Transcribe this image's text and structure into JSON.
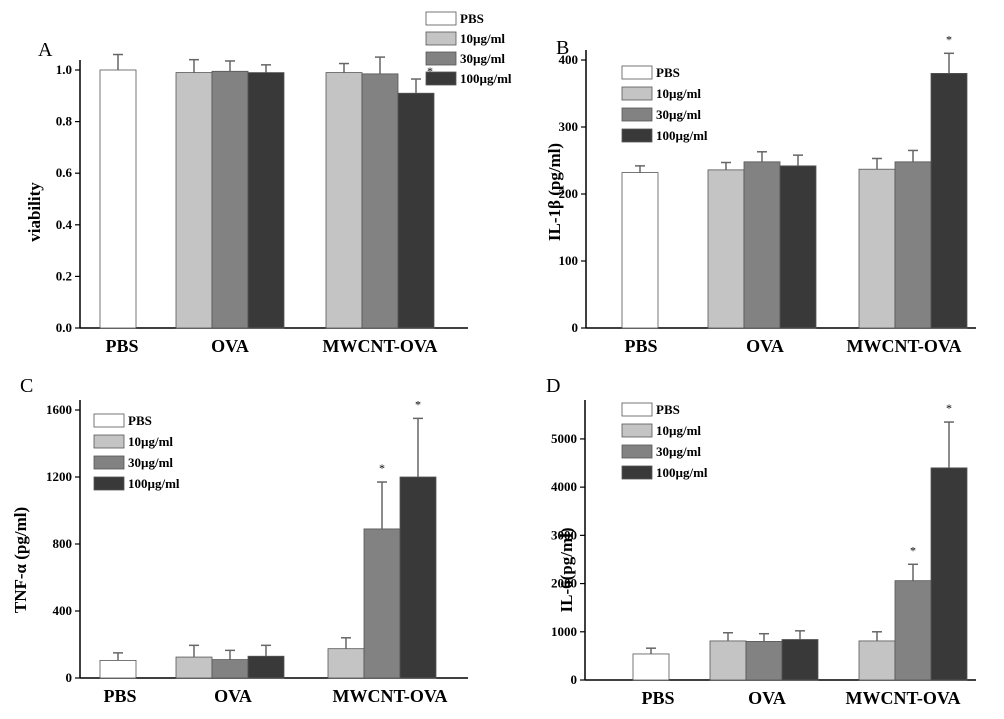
{
  "colors": {
    "PBS": "#ffffff",
    "10µg/ml": "#c4c4c4",
    "30µg/ml": "#828282",
    "100µg/ml": "#393939"
  },
  "chart_data": [
    {
      "panel": "A",
      "type": "bar",
      "ylabel": "viability",
      "ylim": [
        0,
        1.0
      ],
      "yticks": [
        "0.0",
        "0.2",
        "0.4",
        "0.6",
        "0.8",
        "1.0"
      ],
      "categories": [
        "PBS",
        "OVA",
        "MWCNT-OVA"
      ],
      "legend": [
        "PBS",
        "10µg/ml",
        "30µg/ml",
        "100µg/ml"
      ],
      "series": [
        {
          "name": "PBS",
          "values": [
            1.0,
            null,
            null
          ],
          "errors": [
            0.06,
            null,
            null
          ]
        },
        {
          "name": "10µg/ml",
          "values": [
            null,
            0.99,
            0.99
          ],
          "errors": [
            null,
            0.05,
            0.035
          ]
        },
        {
          "name": "30µg/ml",
          "values": [
            null,
            0.995,
            0.985
          ],
          "errors": [
            null,
            0.04,
            0.065
          ]
        },
        {
          "name": "100µg/ml",
          "values": [
            null,
            0.99,
            0.91
          ],
          "errors": [
            null,
            0.03,
            0.055
          ]
        }
      ],
      "significance": [
        {
          "category": "MWCNT-OVA",
          "series": "100µg/ml",
          "mark": "*"
        }
      ]
    },
    {
      "panel": "B",
      "type": "bar",
      "ylabel": "IL-1β (pg/ml)",
      "ylim": [
        0,
        400
      ],
      "yticks": [
        "0",
        "100",
        "200",
        "300",
        "400"
      ],
      "categories": [
        "PBS",
        "OVA",
        "MWCNT-OVA"
      ],
      "legend": [
        "PBS",
        "10µg/ml",
        "30µg/ml",
        "100µg/ml"
      ],
      "series": [
        {
          "name": "PBS",
          "values": [
            232,
            null,
            null
          ],
          "errors": [
            10,
            null,
            null
          ]
        },
        {
          "name": "10µg/ml",
          "values": [
            null,
            236,
            237
          ],
          "errors": [
            null,
            11,
            16
          ]
        },
        {
          "name": "30µg/ml",
          "values": [
            null,
            248,
            248
          ],
          "errors": [
            null,
            15,
            17
          ]
        },
        {
          "name": "100µg/ml",
          "values": [
            null,
            242,
            380
          ],
          "errors": [
            null,
            16,
            30
          ]
        }
      ],
      "significance": [
        {
          "category": "MWCNT-OVA",
          "series": "100µg/ml",
          "mark": "*"
        }
      ]
    },
    {
      "panel": "C",
      "type": "bar",
      "ylabel": "TNF-α (pg/ml)",
      "ylim": [
        0,
        1600
      ],
      "yticks": [
        "0",
        "400",
        "800",
        "1200",
        "1600"
      ],
      "categories": [
        "PBS",
        "OVA",
        "MWCNT-OVA"
      ],
      "legend": [
        "PBS",
        "10µg/ml",
        "30µg/ml",
        "100µg/ml"
      ],
      "series": [
        {
          "name": "PBS",
          "values": [
            105,
            null,
            null
          ],
          "errors": [
            45,
            null,
            null
          ]
        },
        {
          "name": "10µg/ml",
          "values": [
            null,
            125,
            175
          ],
          "errors": [
            null,
            70,
            65
          ]
        },
        {
          "name": "30µg/ml",
          "values": [
            null,
            110,
            890
          ],
          "errors": [
            null,
            55,
            280
          ]
        },
        {
          "name": "100µg/ml",
          "values": [
            null,
            130,
            1200
          ],
          "errors": [
            null,
            65,
            350
          ]
        }
      ],
      "significance": [
        {
          "category": "MWCNT-OVA",
          "series": "30µg/ml",
          "mark": "*"
        },
        {
          "category": "MWCNT-OVA",
          "series": "100µg/ml",
          "mark": "*"
        }
      ]
    },
    {
      "panel": "D",
      "type": "bar",
      "ylabel": "IL-6(pg/ml)",
      "ylim": [
        0,
        5600
      ],
      "yticks": [
        "0",
        "1000",
        "2000",
        "3000",
        "4000",
        "5000"
      ],
      "categories": [
        "PBS",
        "OVA",
        "MWCNT-OVA"
      ],
      "legend": [
        "PBS",
        "10µg/ml",
        "30µg/ml",
        "100µg/ml"
      ],
      "series": [
        {
          "name": "PBS",
          "values": [
            540,
            null,
            null
          ],
          "errors": [
            120,
            null,
            null
          ]
        },
        {
          "name": "10µg/ml",
          "values": [
            null,
            810,
            810
          ],
          "errors": [
            null,
            170,
            190
          ]
        },
        {
          "name": "30µg/ml",
          "values": [
            null,
            800,
            2060
          ],
          "errors": [
            null,
            160,
            340
          ]
        },
        {
          "name": "100µg/ml",
          "values": [
            null,
            840,
            4400
          ],
          "errors": [
            null,
            180,
            950
          ]
        }
      ],
      "significance": [
        {
          "category": "MWCNT-OVA",
          "series": "30µg/ml",
          "mark": "*"
        },
        {
          "category": "MWCNT-OVA",
          "series": "100µg/ml",
          "mark": "*"
        }
      ]
    }
  ]
}
